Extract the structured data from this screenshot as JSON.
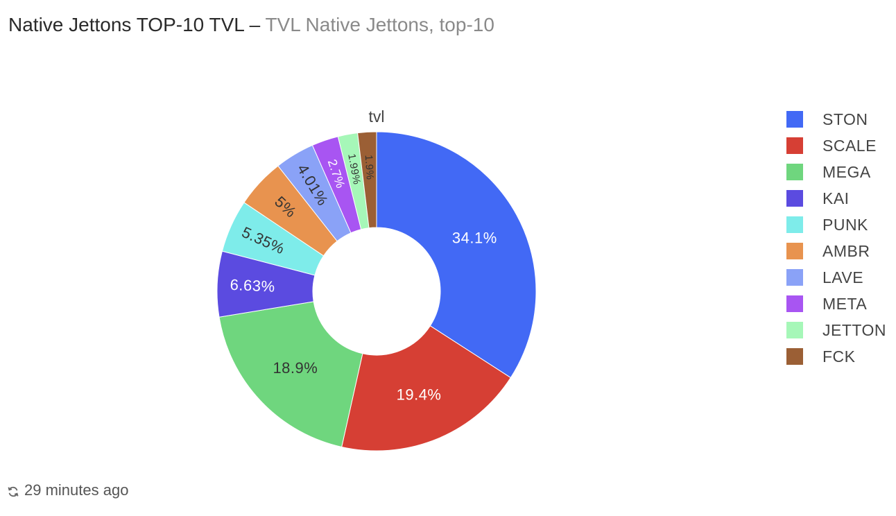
{
  "header": {
    "title": "Native Jettons TOP-10 TVL",
    "separator": "–",
    "subtitle": "TVL Native Jettons, top-10"
  },
  "footer": {
    "icon": "refresh-icon",
    "updated": "29 minutes ago"
  },
  "chart_data": {
    "type": "pie",
    "style": "donut",
    "title": "tvl",
    "legend_position": "right",
    "labels": [
      "STON",
      "SCALE",
      "MEGA",
      "KAI",
      "PUNK",
      "AMBR",
      "LAVE",
      "META",
      "JETTON",
      "FCK"
    ],
    "values": [
      34.1,
      19.4,
      18.9,
      6.63,
      5.35,
      5.0,
      4.01,
      2.7,
      1.99,
      1.9
    ],
    "text_labels": [
      "34.1%",
      "19.4%",
      "18.9%",
      "6.63%",
      "5.35%",
      "5%",
      "4.01%",
      "2.7%",
      "1.99%",
      "1.9%"
    ],
    "colors": [
      "#4269f5",
      "#d63f34",
      "#6fd67e",
      "#5b4be0",
      "#7eecea",
      "#e8934f",
      "#8aa2f7",
      "#a855f2",
      "#a6f7b8",
      "#9b5f35"
    ],
    "label_colors": [
      "#ffffff",
      "#ffffff",
      "#333333",
      "#ffffff",
      "#333333",
      "#333333",
      "#333333",
      "#ffffff",
      "#333333",
      "#333333"
    ]
  }
}
